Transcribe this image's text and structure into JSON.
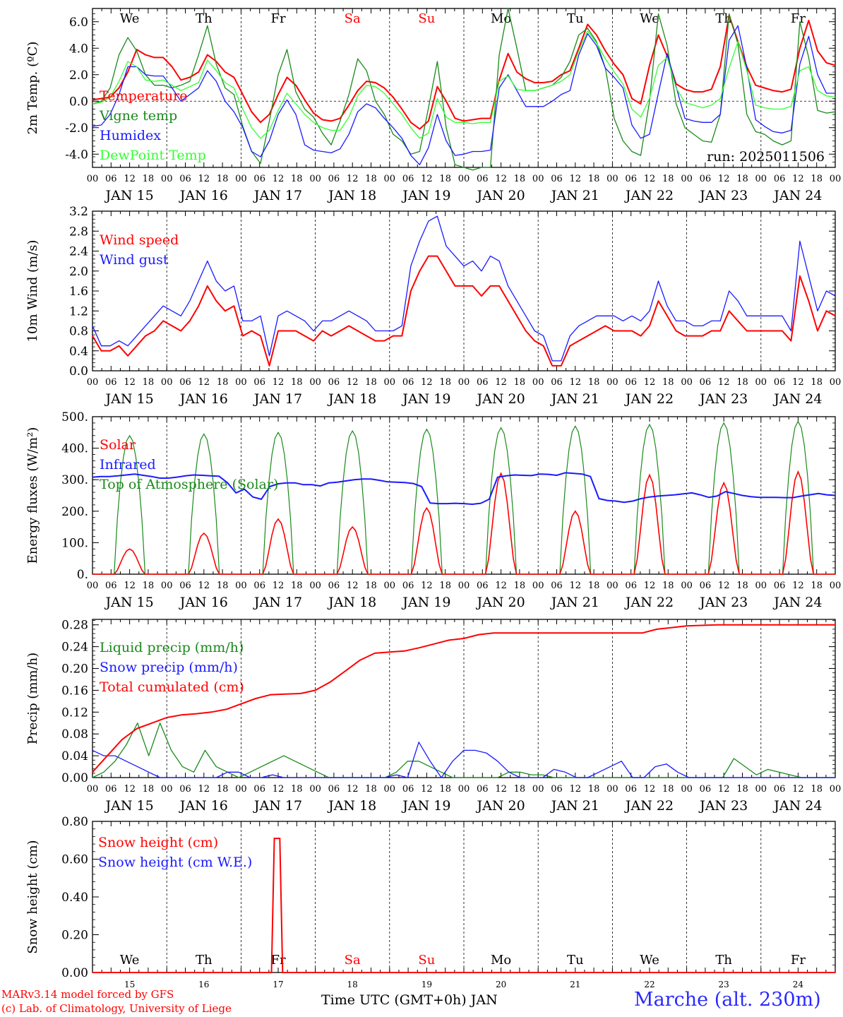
{
  "footer": {
    "model_line": "MARv3.14 model forced by GFS",
    "credit_line": "(c) Lab. of Climatology, University of Liege",
    "xaxis_title": "Time UTC (GMT+0h) JAN",
    "station": "Marche (alt. 230m)"
  },
  "hour_labels": [
    "00",
    "06",
    "12",
    "18"
  ],
  "date_labels": [
    "JAN 15",
    "JAN 16",
    "JAN 17",
    "JAN 18",
    "JAN 19",
    "JAN 20",
    "JAN 21",
    "JAN 22",
    "JAN 23",
    "JAN 24"
  ],
  "bottom_date_labels": [
    "15",
    "16",
    "17",
    "18",
    "19",
    "20",
    "21",
    "22",
    "23",
    "24"
  ],
  "weekdays": [
    "We",
    "Th",
    "Fr",
    "Sa",
    "Su",
    "Mo",
    "Tu",
    "We",
    "Th",
    "Fr"
  ],
  "weekday_colors": [
    "#000000",
    "#000000",
    "#000000",
    "#ff0000",
    "#ff0000",
    "#000000",
    "#000000",
    "#000000",
    "#000000",
    "#000000"
  ],
  "colors": {
    "red": "#ff0000",
    "green": "#1a8a1a",
    "blue": "#1a1aff",
    "lime": "#33ff33",
    "black": "#000000"
  },
  "chart_data": [
    {
      "type": "line",
      "ylabel": "2m Temp. (ºC)",
      "ylim": [
        -5,
        7
      ],
      "yticks": [
        "6.0",
        "4.0",
        "2.0",
        "0.0",
        "-2.0",
        "-4.0"
      ],
      "ytick_values": [
        6,
        4,
        2,
        0,
        -2,
        -4
      ],
      "annotation": "run: 2025011506",
      "x": "hours since JAN 15 00 UTC, 3-hourly",
      "series": [
        {
          "name": "Temperature",
          "color": "red",
          "values": [
            0.1,
            0.2,
            0.3,
            1.0,
            2.2,
            3.9,
            3.5,
            3.3,
            3.3,
            2.6,
            1.6,
            1.8,
            2.2,
            3.5,
            3.0,
            2.2,
            1.8,
            0.5,
            -0.8,
            -1.6,
            -1.0,
            0.5,
            1.8,
            1.2,
            0.1,
            -0.9,
            -1.4,
            -1.5,
            -1.3,
            -0.3,
            0.8,
            1.5,
            1.4,
            1.0,
            0.3,
            -0.6,
            -1.6,
            -2.1,
            -1.5,
            1.1,
            0.0,
            -1.3,
            -1.5,
            -1.4,
            -1.3,
            -1.3,
            1.6,
            3.6,
            2.2,
            1.7,
            1.4,
            1.4,
            1.5,
            2.0,
            2.3,
            4.0,
            5.8,
            5.0,
            3.8,
            2.8,
            2.0,
            0.2,
            -0.2,
            2.7,
            5.0,
            3.4,
            1.3,
            0.9,
            0.7,
            0.7,
            0.9,
            2.6,
            6.5,
            4.5,
            2.6,
            1.2,
            1.0,
            0.8,
            0.7,
            0.9,
            4.0,
            6.1,
            3.8,
            2.9,
            2.7
          ]
        },
        {
          "name": "Vigne temp",
          "color": "green",
          "values": [
            -0.2,
            0.0,
            1.0,
            3.5,
            4.8,
            3.8,
            2.0,
            1.2,
            1.2,
            1.0,
            1.2,
            1.5,
            3.5,
            5.7,
            2.8,
            1.0,
            0.5,
            -1.9,
            -3.8,
            -4.7,
            -1.5,
            2.0,
            3.9,
            0.7,
            -0.6,
            -1.2,
            -2.4,
            -3.3,
            -1.5,
            0.5,
            3.2,
            2.3,
            0.0,
            -1.0,
            -2.5,
            -3.0,
            -4.0,
            -3.8,
            -0.5,
            3.0,
            -2.0,
            -4.8,
            -5.0,
            -5.2,
            -5.0,
            -5.0,
            3.5,
            7.0,
            4.0,
            0.8,
            0.8,
            1.0,
            1.2,
            1.8,
            3.0,
            5.0,
            5.5,
            4.5,
            2.5,
            -1.3,
            -3.0,
            -3.8,
            -4.1,
            0.0,
            6.6,
            4.2,
            -0.2,
            -2.0,
            -2.5,
            -3.0,
            -3.1,
            -1.0,
            6.6,
            4.3,
            -1.0,
            -2.3,
            -2.5,
            -3.0,
            -3.3,
            -3.0,
            6.0,
            3.3,
            -0.7,
            -0.9,
            -0.8
          ]
        },
        {
          "name": "Humidex",
          "color": "blue",
          "values": [
            -1.9,
            -1.8,
            -1.0,
            0.5,
            2.6,
            2.6,
            2.0,
            1.9,
            1.9,
            1.0,
            0.0,
            0.5,
            1.0,
            2.3,
            1.5,
            0.0,
            -0.8,
            -2.0,
            -3.8,
            -4.2,
            -3.0,
            -1.0,
            0.1,
            -1.0,
            -3.3,
            -3.7,
            -3.8,
            -3.9,
            -3.6,
            -2.5,
            -0.8,
            -0.2,
            -0.5,
            -1.3,
            -2.0,
            -2.8,
            -4.1,
            -4.8,
            -3.5,
            -1.0,
            -3.0,
            -4.1,
            -4.0,
            -3.8,
            -3.8,
            -3.7,
            1.0,
            2.0,
            0.8,
            -0.4,
            -0.4,
            -0.4,
            0.0,
            0.5,
            0.8,
            3.5,
            5.1,
            4.2,
            2.5,
            1.8,
            1.0,
            -1.8,
            -2.8,
            -2.5,
            0.6,
            3.6,
            1.1,
            -1.3,
            -1.5,
            -1.6,
            -1.6,
            -1.0,
            4.6,
            5.7,
            2.5,
            -1.4,
            -1.9,
            -2.3,
            -2.4,
            -2.2,
            2.8,
            4.9,
            2.0,
            0.6,
            0.6
          ]
        },
        {
          "name": "DewPoint Temp",
          "color": "lime",
          "values": [
            -0.2,
            -0.1,
            0.3,
            1.5,
            3.0,
            2.6,
            1.6,
            1.5,
            1.6,
            1.2,
            0.8,
            1.1,
            1.4,
            3.1,
            2.3,
            1.4,
            1.0,
            -0.6,
            -2.0,
            -2.8,
            -2.2,
            -0.7,
            0.6,
            -0.2,
            -1.0,
            -1.6,
            -2.0,
            -2.2,
            -2.2,
            -1.2,
            0.4,
            1.2,
            1.1,
            0.6,
            -0.2,
            -1.0,
            -2.0,
            -2.8,
            -2.4,
            0.2,
            -1.2,
            -1.6,
            -1.6,
            -1.7,
            -1.6,
            -1.6,
            1.5,
            1.9,
            0.9,
            0.8,
            0.8,
            1.0,
            1.2,
            1.5,
            2.0,
            3.8,
            5.3,
            4.4,
            3.2,
            2.2,
            1.3,
            -0.6,
            -1.2,
            0.2,
            2.7,
            3.3,
            1.0,
            -0.1,
            -0.3,
            -0.5,
            -0.3,
            0.2,
            2.5,
            4.5,
            2.3,
            -0.3,
            -0.5,
            -0.6,
            -0.6,
            -0.4,
            2.3,
            2.6,
            0.8,
            0.4,
            0.3
          ]
        }
      ]
    },
    {
      "type": "line",
      "ylabel": "10m Wind (m/s)",
      "ylim": [
        0,
        3.2
      ],
      "yticks": [
        "3.2",
        "2.8",
        "2.4",
        "2.0",
        "1.6",
        "1.2",
        "0.8",
        "0.4",
        "0.0"
      ],
      "ytick_values": [
        3.2,
        2.8,
        2.4,
        2.0,
        1.6,
        1.2,
        0.8,
        0.4,
        0.0
      ],
      "series": [
        {
          "name": "Wind speed",
          "color": "red",
          "values": [
            0.7,
            0.4,
            0.4,
            0.5,
            0.3,
            0.5,
            0.7,
            0.8,
            1.0,
            0.9,
            0.8,
            1.0,
            1.3,
            1.7,
            1.4,
            1.2,
            1.3,
            0.7,
            0.8,
            0.7,
            0.1,
            0.8,
            0.8,
            0.8,
            0.7,
            0.6,
            0.8,
            0.7,
            0.8,
            0.9,
            0.8,
            0.7,
            0.6,
            0.6,
            0.7,
            0.7,
            1.6,
            2.0,
            2.3,
            2.3,
            2.0,
            1.7,
            1.7,
            1.7,
            1.5,
            1.7,
            1.7,
            1.4,
            1.1,
            0.8,
            0.6,
            0.5,
            0.1,
            0.1,
            0.5,
            0.6,
            0.7,
            0.8,
            0.9,
            0.8,
            0.8,
            0.8,
            0.7,
            0.9,
            1.4,
            1.1,
            0.8,
            0.7,
            0.7,
            0.7,
            0.8,
            0.8,
            1.2,
            1.0,
            0.8,
            0.8,
            0.8,
            0.8,
            0.8,
            0.6,
            1.9,
            1.4,
            0.8,
            1.2,
            1.1
          ]
        },
        {
          "name": "Wind gust",
          "color": "blue",
          "values": [
            0.9,
            0.5,
            0.5,
            0.6,
            0.5,
            0.7,
            0.9,
            1.1,
            1.3,
            1.2,
            1.1,
            1.4,
            1.8,
            2.2,
            1.8,
            1.6,
            1.7,
            1.0,
            1.0,
            1.1,
            0.3,
            1.1,
            1.2,
            1.1,
            1.0,
            0.8,
            1.0,
            1.0,
            1.1,
            1.2,
            1.1,
            1.0,
            0.8,
            0.8,
            0.8,
            0.9,
            2.1,
            2.6,
            3.0,
            3.1,
            2.5,
            2.3,
            2.1,
            2.2,
            2.0,
            2.3,
            2.2,
            1.7,
            1.4,
            1.1,
            0.8,
            0.7,
            0.2,
            0.2,
            0.7,
            0.9,
            1.0,
            1.1,
            1.1,
            1.1,
            1.0,
            1.1,
            1.0,
            1.2,
            1.8,
            1.3,
            1.0,
            1.0,
            0.9,
            0.9,
            1.0,
            1.0,
            1.6,
            1.4,
            1.1,
            1.1,
            1.1,
            1.1,
            1.1,
            0.8,
            2.6,
            1.9,
            1.2,
            1.6,
            1.5
          ]
        }
      ]
    },
    {
      "type": "line",
      "ylabel": "Energy fluxes (W/m²)",
      "ylim": [
        0,
        500
      ],
      "yticks": [
        "500.",
        "400.",
        "300.",
        "200.",
        "100.",
        "0."
      ],
      "ytick_values": [
        500,
        400,
        300,
        200,
        100,
        0
      ],
      "series": [
        {
          "name": "Solar",
          "color": "red",
          "peaks": [
            80,
            130,
            175,
            150,
            210,
            320,
            200,
            315,
            290,
            325
          ]
        },
        {
          "name": "Infrared",
          "color": "blue",
          "values": [
            308,
            310,
            310,
            312,
            315,
            318,
            314,
            310,
            305,
            305,
            308,
            312,
            315,
            314,
            312,
            311,
            290,
            258,
            270,
            245,
            238,
            278,
            287,
            290,
            290,
            284,
            284,
            280,
            290,
            292,
            296,
            300,
            302,
            302,
            298,
            293,
            292,
            291,
            288,
            278,
            226,
            224,
            224,
            225,
            224,
            222,
            225,
            238,
            308,
            312,
            315,
            314,
            313,
            318,
            317,
            314,
            322,
            320,
            318,
            310,
            240,
            234,
            232,
            228,
            232,
            240,
            245,
            248,
            250,
            252,
            255,
            258,
            252,
            244,
            248,
            262,
            256,
            250,
            246,
            244,
            244,
            244,
            243,
            243,
            248,
            252,
            256,
            252,
            250
          ]
        },
        {
          "name": "Top of Atmosphere (Solar)",
          "color": "green",
          "peaks": [
            440,
            445,
            450,
            455,
            460,
            465,
            470,
            475,
            480,
            485
          ]
        }
      ]
    },
    {
      "type": "line",
      "ylabel": "Precip (mm/h)",
      "ylim": [
        0,
        0.29
      ],
      "yticks": [
        "0.28",
        "0.24",
        "0.20",
        "0.16",
        "0.12",
        "0.08",
        "0.04",
        "0.00"
      ],
      "ytick_values": [
        0.28,
        0.24,
        0.2,
        0.16,
        0.12,
        0.08,
        0.04,
        0.0
      ],
      "series": [
        {
          "name": "Liquid precip (mm/h)",
          "color": "green",
          "values": [
            0.0,
            0.01,
            0.03,
            0.06,
            0.1,
            0.04,
            0.1,
            0.05,
            0.02,
            0.01,
            0.05,
            0.02,
            0.01,
            0.0,
            0.01,
            0.02,
            0.03,
            0.04,
            0.03,
            0.02,
            0.01,
            0.0,
            0.0,
            0.0,
            0.0,
            0.0,
            0.0,
            0.01,
            0.03,
            0.03,
            0.02,
            0.01,
            0.0,
            0.0,
            0.0,
            0.0,
            0.0,
            0.01,
            0.01,
            0.005,
            0.005,
            0.0,
            0.0,
            0.0,
            0.0,
            0.0,
            0.0,
            0.0,
            0.0,
            0.0,
            0.0,
            0.0,
            0.0,
            0.0,
            0.0,
            0.0,
            0.0,
            0.035,
            0.02,
            0.005,
            0.015,
            0.01,
            0.005,
            0.0,
            0.0,
            0.0,
            0.0
          ]
        },
        {
          "name": "Snow precip (mm/h)",
          "color": "blue",
          "values": [
            0.05,
            0.04,
            0.04,
            0.03,
            0.02,
            0.01,
            0.0,
            0.0,
            0.0,
            0.0,
            0.0,
            0.0,
            0.01,
            0.01,
            0.0,
            0.0,
            0.005,
            0.0,
            0.0,
            0.0,
            0.0,
            0.0,
            0.0,
            0.0,
            0.0,
            0.0,
            0.0,
            0.005,
            0.0,
            0.065,
            0.03,
            0.0,
            0.03,
            0.05,
            0.05,
            0.045,
            0.03,
            0.01,
            0.0,
            0.0,
            0.0,
            0.015,
            0.01,
            0.0,
            0.0,
            0.01,
            0.02,
            0.03,
            0.0,
            0.0,
            0.02,
            0.025,
            0.01,
            0.0,
            0.0,
            0.0,
            0.0,
            0.0,
            0.0,
            0.0,
            0.0,
            0.0,
            0.0,
            0.0,
            0.0,
            0.0,
            0.0
          ]
        },
        {
          "name": "Total cumulated (cm)",
          "color": "red",
          "values": [
            0.01,
            0.04,
            0.07,
            0.09,
            0.1,
            0.11,
            0.115,
            0.117,
            0.12,
            0.125,
            0.135,
            0.145,
            0.152,
            0.153,
            0.154,
            0.16,
            0.175,
            0.195,
            0.215,
            0.228,
            0.23,
            0.232,
            0.238,
            0.245,
            0.252,
            0.255,
            0.262,
            0.265,
            0.265,
            0.265,
            0.265,
            0.265,
            0.265,
            0.265,
            0.265,
            0.265,
            0.265,
            0.265,
            0.272,
            0.275,
            0.278,
            0.279,
            0.28,
            0.28,
            0.28,
            0.28,
            0.28,
            0.28,
            0.28,
            0.28,
            0.28
          ]
        }
      ]
    },
    {
      "type": "line",
      "ylabel": "Snow height (cm)",
      "ylim": [
        0,
        0.8
      ],
      "yticks": [
        "0.80",
        "0.60",
        "0.40",
        "0.20",
        "0.00"
      ],
      "ytick_values": [
        0.8,
        0.6,
        0.4,
        0.2,
        0.0
      ],
      "series": [
        {
          "name": "Snow height (cm)",
          "color": "red",
          "spike_day": 2.45,
          "spike_value": 0.71
        },
        {
          "name": "Snow height (cm W.E.)",
          "color": "blue",
          "values": []
        }
      ]
    }
  ]
}
